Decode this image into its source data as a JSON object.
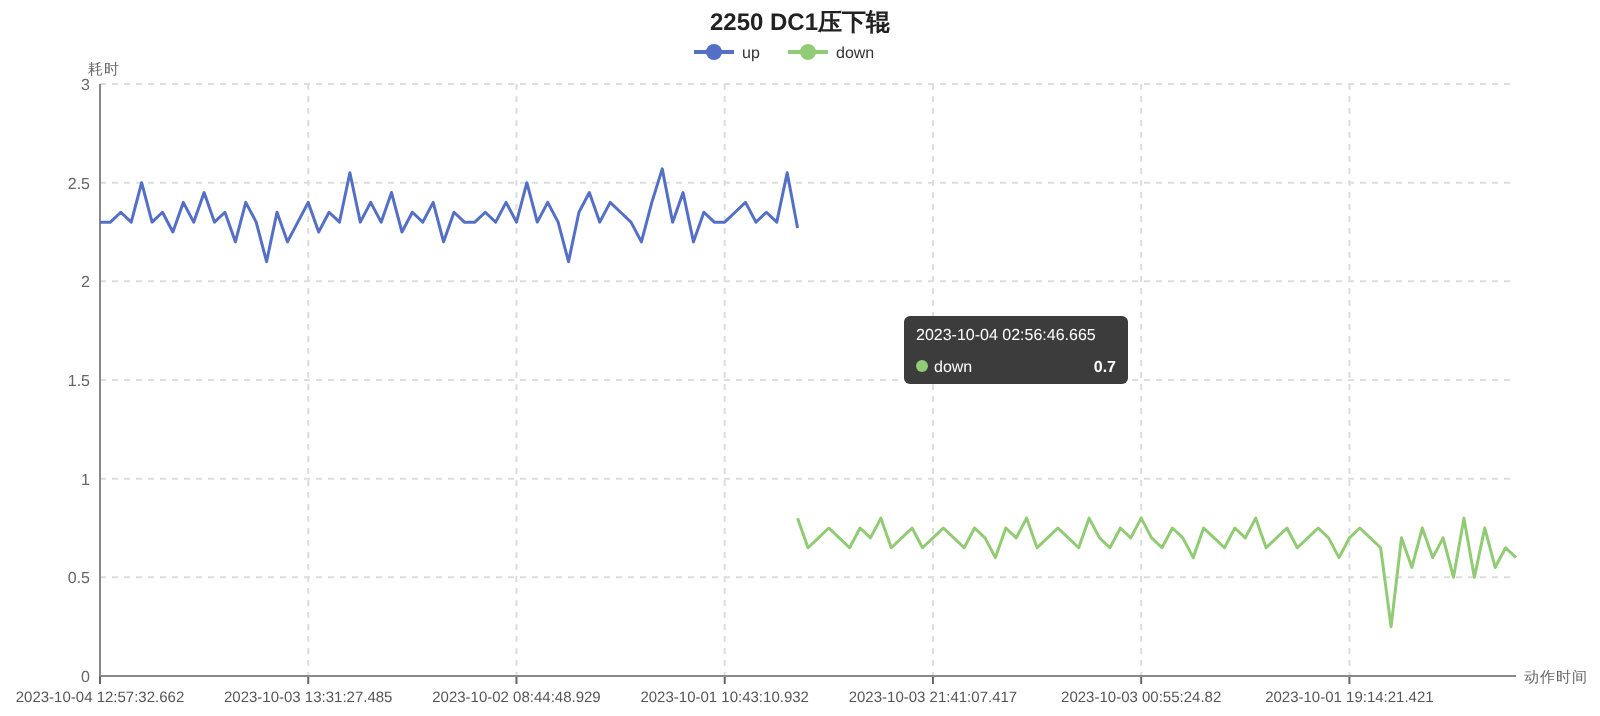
{
  "chart_data": {
    "type": "line",
    "title": "2250 DC1压下辊",
    "xlabel": "动作时间",
    "ylabel": "耗时",
    "categories": [
      "2023-10-04 12:57:32.662",
      null,
      null,
      null,
      null,
      null,
      null,
      null,
      null,
      null,
      null,
      null,
      null,
      null,
      null,
      null,
      null,
      null,
      null,
      null,
      "2023-10-03 13:31:27.485",
      null,
      null,
      null,
      null,
      null,
      null,
      null,
      null,
      null,
      null,
      null,
      null,
      null,
      null,
      null,
      null,
      null,
      null,
      null,
      "2023-10-02 08:44:48.929",
      null,
      null,
      null,
      null,
      null,
      null,
      null,
      null,
      null,
      null,
      null,
      null,
      null,
      null,
      null,
      null,
      null,
      null,
      null,
      "2023-10-01 10:43:10.932",
      null,
      null,
      null,
      null,
      null,
      null,
      null,
      null,
      null,
      null,
      null,
      null,
      null,
      null,
      null,
      null,
      null,
      null,
      null,
      "2023-10-03 21:41:07.417",
      null,
      null,
      null,
      null,
      null,
      null,
      null,
      null,
      null,
      null,
      null,
      null,
      null,
      null,
      null,
      null,
      null,
      null,
      null,
      "2023-10-03 00:55:24.82",
      null,
      null,
      null,
      null,
      null,
      null,
      null,
      null,
      null,
      null,
      null,
      null,
      null,
      null,
      null,
      null,
      null,
      null,
      null,
      "2023-10-01 19:14:21.421",
      null,
      null,
      null,
      null,
      null,
      null,
      null,
      null,
      null,
      null,
      null,
      null,
      null,
      null,
      null,
      null
    ],
    "series": [
      {
        "name": "up",
        "color": "#5470c6",
        "values": [
          2.3,
          2.3,
          2.35,
          2.3,
          2.5,
          2.3,
          2.35,
          2.25,
          2.4,
          2.3,
          2.45,
          2.3,
          2.35,
          2.2,
          2.4,
          2.3,
          2.1,
          2.35,
          2.2,
          2.3,
          2.4,
          2.25,
          2.35,
          2.3,
          2.55,
          2.3,
          2.4,
          2.3,
          2.45,
          2.25,
          2.35,
          2.3,
          2.4,
          2.2,
          2.35,
          2.3,
          2.3,
          2.35,
          2.3,
          2.4,
          2.3,
          2.5,
          2.3,
          2.4,
          2.3,
          2.1,
          2.35,
          2.45,
          2.3,
          2.4,
          2.35,
          2.3,
          2.2,
          2.4,
          2.57,
          2.3,
          2.45,
          2.2,
          2.35,
          2.3,
          2.3,
          2.35,
          2.4,
          2.3,
          2.35,
          2.3,
          2.55,
          2.27,
          null,
          null,
          null,
          null,
          null,
          null,
          null,
          null,
          null,
          null,
          null,
          null,
          null,
          null,
          null,
          null,
          null,
          null,
          null,
          null,
          null,
          null,
          null,
          null,
          null,
          null,
          null,
          null,
          null,
          null,
          null,
          null,
          null,
          null,
          null,
          null,
          null,
          null,
          null,
          null,
          null,
          null,
          null,
          null,
          null,
          null,
          null,
          null,
          null,
          null,
          null,
          null,
          null,
          null,
          null,
          null,
          null,
          null,
          null,
          null,
          null,
          null,
          null,
          null,
          null,
          null,
          null,
          null,
          null
        ]
      },
      {
        "name": "down",
        "color": "#91cc75",
        "values": [
          null,
          null,
          null,
          null,
          null,
          null,
          null,
          null,
          null,
          null,
          null,
          null,
          null,
          null,
          null,
          null,
          null,
          null,
          null,
          null,
          null,
          null,
          null,
          null,
          null,
          null,
          null,
          null,
          null,
          null,
          null,
          null,
          null,
          null,
          null,
          null,
          null,
          null,
          null,
          null,
          null,
          null,
          null,
          null,
          null,
          null,
          null,
          null,
          null,
          null,
          null,
          null,
          null,
          null,
          null,
          null,
          null,
          null,
          null,
          null,
          null,
          null,
          null,
          null,
          null,
          null,
          null,
          0.8,
          0.65,
          0.7,
          0.75,
          0.7,
          0.65,
          0.75,
          0.7,
          0.8,
          0.65,
          0.7,
          0.75,
          0.65,
          0.7,
          0.75,
          0.7,
          0.65,
          0.75,
          0.7,
          0.6,
          0.75,
          0.7,
          0.8,
          0.65,
          0.7,
          0.75,
          0.7,
          0.65,
          0.8,
          0.7,
          0.65,
          0.75,
          0.7,
          0.8,
          0.7,
          0.65,
          0.75,
          0.7,
          0.6,
          0.75,
          0.7,
          0.65,
          0.75,
          0.7,
          0.8,
          0.65,
          0.7,
          0.75,
          0.65,
          0.7,
          0.75,
          0.7,
          0.6,
          0.7,
          0.75,
          0.7,
          0.65,
          0.25,
          0.7,
          0.55,
          0.75,
          0.6,
          0.7,
          0.5,
          0.8,
          0.5,
          0.75,
          0.55,
          0.65,
          0.6
        ]
      }
    ],
    "ylim": [
      0,
      3
    ],
    "yticks": [
      0,
      0.5,
      1,
      1.5,
      2,
      2.5,
      3
    ],
    "grid": true,
    "legend": "top",
    "annotations": [
      "2023-10-04 02:56:46.665",
      "down",
      "0.7"
    ]
  }
}
